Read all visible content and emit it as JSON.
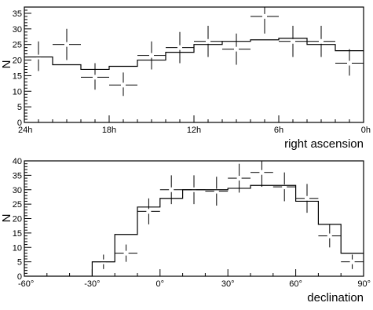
{
  "chart_data": [
    {
      "type": "scatter",
      "xlabel": "right ascension",
      "ylabel": "N",
      "x_direction": "reversed",
      "xlim": [
        24,
        0
      ],
      "ylim": [
        0,
        37
      ],
      "x_ticks": [
        24,
        18,
        12,
        6,
        0
      ],
      "x_tick_labels": [
        "24h",
        "18h",
        "12h",
        "6h",
        "0h"
      ],
      "y_ticks": [
        0,
        5,
        10,
        15,
        20,
        25,
        30,
        35
      ],
      "y_tick_labels": [
        "0",
        "5",
        "10",
        "15",
        "20",
        "25",
        "30",
        "35"
      ],
      "grid": false,
      "points": [
        {
          "x": 23,
          "y": 21,
          "ylow": 16.5,
          "yhigh": 26
        },
        {
          "x": 21,
          "y": 25,
          "ylow": 20,
          "yhigh": 30
        },
        {
          "x": 19,
          "y": 14.5,
          "ylow": 10.5,
          "yhigh": 19
        },
        {
          "x": 17,
          "y": 12,
          "ylow": 8.5,
          "yhigh": 16
        },
        {
          "x": 15,
          "y": 21.5,
          "ylow": 17,
          "yhigh": 26
        },
        {
          "x": 13,
          "y": 24,
          "ylow": 19,
          "yhigh": 29
        },
        {
          "x": 11,
          "y": 26,
          "ylow": 21,
          "yhigh": 31
        },
        {
          "x": 9,
          "y": 23.5,
          "ylow": 18.5,
          "yhigh": 28.5
        },
        {
          "x": 7,
          "y": 34,
          "ylow": 28.5,
          "yhigh": 39.5
        },
        {
          "x": 5,
          "y": 26,
          "ylow": 21,
          "yhigh": 31
        },
        {
          "x": 3,
          "y": 26,
          "ylow": 21,
          "yhigh": 31
        },
        {
          "x": 1,
          "y": 19,
          "ylow": 15,
          "yhigh": 23.5
        }
      ],
      "model_step": {
        "edges": [
          24,
          22,
          20,
          18,
          16,
          14,
          12,
          10,
          8,
          6,
          4,
          2,
          0
        ],
        "values": [
          21,
          18.5,
          17,
          18,
          20,
          22.5,
          25,
          26,
          26.5,
          27,
          25,
          23
        ]
      }
    },
    {
      "type": "scatter",
      "xlabel": "declination",
      "ylabel": "N",
      "xlim": [
        -60,
        90
      ],
      "ylim": [
        0,
        40
      ],
      "x_ticks": [
        -60,
        -30,
        0,
        30,
        60,
        90
      ],
      "x_tick_labels": [
        "-60°",
        "-30°",
        "0°",
        "30°",
        "60°",
        "90°"
      ],
      "y_ticks": [
        0,
        5,
        10,
        15,
        20,
        25,
        30,
        35,
        40
      ],
      "y_tick_labels": [
        "0",
        "5",
        "10",
        "15",
        "20",
        "25",
        "30",
        "35",
        "40"
      ],
      "grid": false,
      "points": [
        {
          "x": -25,
          "y": 5,
          "ylow": 2.5,
          "yhigh": 7.5
        },
        {
          "x": -15,
          "y": 8,
          "ylow": 5,
          "yhigh": 11
        },
        {
          "x": -5,
          "y": 22.5,
          "ylow": 18,
          "yhigh": 27
        },
        {
          "x": 5,
          "y": 30,
          "ylow": 25,
          "yhigh": 35
        },
        {
          "x": 15,
          "y": 30,
          "ylow": 25,
          "yhigh": 35
        },
        {
          "x": 25,
          "y": 29.5,
          "ylow": 24.5,
          "yhigh": 34.5
        },
        {
          "x": 35,
          "y": 34,
          "ylow": 29,
          "yhigh": 39
        },
        {
          "x": 45,
          "y": 36,
          "ylow": 31,
          "yhigh": 41
        },
        {
          "x": 55,
          "y": 31,
          "ylow": 26,
          "yhigh": 36
        },
        {
          "x": 65,
          "y": 27,
          "ylow": 22,
          "yhigh": 32
        },
        {
          "x": 75,
          "y": 14,
          "ylow": 10,
          "yhigh": 18
        },
        {
          "x": 85,
          "y": 5,
          "ylow": 2.5,
          "yhigh": 7.5
        }
      ],
      "model_step": {
        "edges": [
          -60,
          -30,
          -20,
          -10,
          0,
          10,
          20,
          30,
          40,
          50,
          60,
          70,
          80,
          90
        ],
        "values": [
          0,
          5,
          14.5,
          24,
          27,
          30,
          30,
          30.5,
          31.5,
          31.5,
          26,
          18,
          8
        ]
      }
    }
  ]
}
